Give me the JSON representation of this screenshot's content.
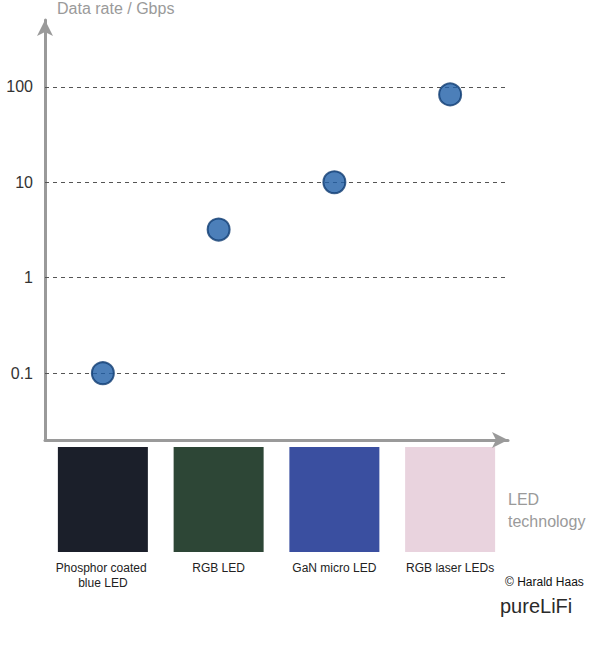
{
  "chart_data": {
    "type": "scatter",
    "y_label": "Data rate / Gbps",
    "x_label": "LED technology",
    "categories": [
      "Phosphor coated blue LED",
      "RGB LED",
      "GaN micro LED",
      "RGB laser LEDs"
    ],
    "values": [
      0.1,
      3.2,
      10,
      83
    ],
    "color": "#1f5fa8",
    "marker": "circle",
    "log": "y",
    "ylim": [
      0.02,
      500
    ],
    "yticks": [
      0.1,
      1,
      10,
      100
    ],
    "grid": true,
    "annotations": [
      "© Harald Haas",
      "pureLiFi"
    ]
  }
}
